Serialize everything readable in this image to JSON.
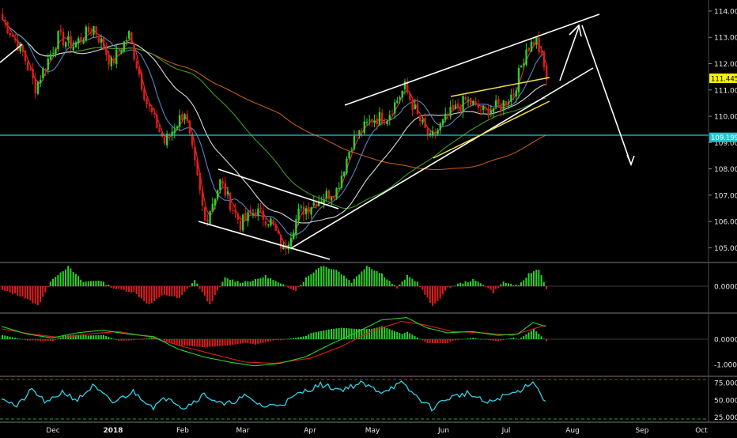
{
  "colors": {
    "background": "#000000",
    "up": "#2bd12b",
    "down": "#e01b1b",
    "axis_text": "#e6e6e6",
    "separator": "#7a7a7a",
    "trendline": "#ffffff",
    "yellow_line": "#f1e04a",
    "price_badge": "#f7f200",
    "level_line": "#23c7d3",
    "ma_orange": "#c05a1a",
    "ma_green": "#3f9a22",
    "ma_white": "#d8d8d8",
    "ma_blue": "#5b82c4",
    "ma_red": "#e43030",
    "oscillator": "#2fd3e6",
    "dashed_red": "#d42a2a",
    "dashed_green": "#1ea81e"
  },
  "chart_data": [
    {
      "type": "candlestick",
      "panel": "price",
      "ylim": [
        104.5,
        114.3
      ],
      "y_ticks": [
        "114.00",
        "113.00",
        "112.00",
        "111.00",
        "110.00",
        "109.00",
        "108.00",
        "107.00",
        "106.00",
        "105.00"
      ],
      "x_ticks": [
        "Dec",
        "2018",
        "Feb",
        "Mar",
        "Apr",
        "May",
        "Jun",
        "Jul",
        "Aug",
        "Sep",
        "Oct"
      ],
      "last_price_label": "111.445",
      "last_price": 111.445,
      "level_label": "109.199",
      "level": 109.199,
      "anchors": [
        {
          "i": 0,
          "v": 113.7
        },
        {
          "i": 8,
          "v": 112.4
        },
        {
          "i": 13,
          "v": 111.1
        },
        {
          "i": 22,
          "v": 113.0
        },
        {
          "i": 28,
          "v": 112.7
        },
        {
          "i": 36,
          "v": 113.4
        },
        {
          "i": 43,
          "v": 112.0
        },
        {
          "i": 50,
          "v": 113.1
        },
        {
          "i": 57,
          "v": 110.5
        },
        {
          "i": 64,
          "v": 109.0
        },
        {
          "i": 72,
          "v": 110.2
        },
        {
          "i": 80,
          "v": 106.0
        },
        {
          "i": 86,
          "v": 107.5
        },
        {
          "i": 94,
          "v": 105.9
        },
        {
          "i": 100,
          "v": 106.4
        },
        {
          "i": 106,
          "v": 106.0
        },
        {
          "i": 111,
          "v": 104.9
        },
        {
          "i": 117,
          "v": 106.3
        },
        {
          "i": 124,
          "v": 106.8
        },
        {
          "i": 132,
          "v": 107.2
        },
        {
          "i": 138,
          "v": 109.0
        },
        {
          "i": 146,
          "v": 109.9
        },
        {
          "i": 152,
          "v": 110.0
        },
        {
          "i": 159,
          "v": 111.1
        },
        {
          "i": 164,
          "v": 110.0
        },
        {
          "i": 169,
          "v": 109.1
        },
        {
          "i": 176,
          "v": 110.0
        },
        {
          "i": 183,
          "v": 110.6
        },
        {
          "i": 190,
          "v": 110.2
        },
        {
          "i": 197,
          "v": 110.4
        },
        {
          "i": 202,
          "v": 110.9
        },
        {
          "i": 207,
          "v": 112.6
        },
        {
          "i": 211,
          "v": 112.9
        },
        {
          "i": 215,
          "v": 111.45
        }
      ],
      "moving_averages": [
        {
          "color": "ma_orange",
          "period": 200
        },
        {
          "color": "ma_green",
          "period": 100
        },
        {
          "color": "ma_white",
          "period": 50
        },
        {
          "color": "ma_blue",
          "period": 20
        },
        {
          "color": "ma_red",
          "period": 8
        }
      ]
    },
    {
      "type": "bar",
      "panel": "histogram",
      "y_ticks": [
        "0.0000"
      ],
      "ylim": [
        -1.1,
        1.1
      ],
      "anchors": [
        {
          "i": 0,
          "v": -0.2
        },
        {
          "i": 8,
          "v": -0.5
        },
        {
          "i": 14,
          "v": -0.95
        },
        {
          "i": 20,
          "v": 0.4
        },
        {
          "i": 26,
          "v": 0.95
        },
        {
          "i": 32,
          "v": 0.2
        },
        {
          "i": 38,
          "v": 0.3
        },
        {
          "i": 44,
          "v": -0.1
        },
        {
          "i": 52,
          "v": -0.3
        },
        {
          "i": 58,
          "v": -0.9
        },
        {
          "i": 64,
          "v": -0.4
        },
        {
          "i": 70,
          "v": -0.6
        },
        {
          "i": 76,
          "v": 0.3
        },
        {
          "i": 82,
          "v": -0.9
        },
        {
          "i": 88,
          "v": 0.4
        },
        {
          "i": 94,
          "v": 0.2
        },
        {
          "i": 100,
          "v": 0.3
        },
        {
          "i": 104,
          "v": 0.5
        },
        {
          "i": 110,
          "v": 0.1
        },
        {
          "i": 116,
          "v": -0.2
        },
        {
          "i": 120,
          "v": 0.4
        },
        {
          "i": 126,
          "v": 1.0
        },
        {
          "i": 132,
          "v": 0.8
        },
        {
          "i": 138,
          "v": 0.2
        },
        {
          "i": 144,
          "v": 1.0
        },
        {
          "i": 150,
          "v": 0.6
        },
        {
          "i": 156,
          "v": -0.1
        },
        {
          "i": 160,
          "v": 0.5
        },
        {
          "i": 164,
          "v": 0.2
        },
        {
          "i": 170,
          "v": -1.0
        },
        {
          "i": 176,
          "v": -0.1
        },
        {
          "i": 180,
          "v": 0.1
        },
        {
          "i": 186,
          "v": 0.3
        },
        {
          "i": 190,
          "v": 0.1
        },
        {
          "i": 194,
          "v": -0.3
        },
        {
          "i": 198,
          "v": 0.2
        },
        {
          "i": 204,
          "v": 0.0
        },
        {
          "i": 208,
          "v": 0.6
        },
        {
          "i": 212,
          "v": 0.85
        },
        {
          "i": 215,
          "v": -0.1
        }
      ]
    },
    {
      "type": "line",
      "panel": "macd",
      "y_ticks": [
        "0.0000",
        "-1.0000"
      ],
      "ylim": [
        -1.4,
        0.9
      ],
      "macd_anchors": [
        {
          "i": 0,
          "v": 0.5
        },
        {
          "i": 10,
          "v": 0.2
        },
        {
          "i": 20,
          "v": 0.05
        },
        {
          "i": 30,
          "v": 0.25
        },
        {
          "i": 40,
          "v": 0.35
        },
        {
          "i": 50,
          "v": 0.2
        },
        {
          "i": 60,
          "v": 0.1
        },
        {
          "i": 70,
          "v": -0.4
        },
        {
          "i": 80,
          "v": -0.7
        },
        {
          "i": 90,
          "v": -0.9
        },
        {
          "i": 100,
          "v": -1.05
        },
        {
          "i": 110,
          "v": -0.95
        },
        {
          "i": 120,
          "v": -0.7
        },
        {
          "i": 130,
          "v": -0.2
        },
        {
          "i": 140,
          "v": 0.25
        },
        {
          "i": 150,
          "v": 0.75
        },
        {
          "i": 160,
          "v": 0.85
        },
        {
          "i": 168,
          "v": 0.45
        },
        {
          "i": 176,
          "v": 0.25
        },
        {
          "i": 186,
          "v": 0.3
        },
        {
          "i": 196,
          "v": 0.15
        },
        {
          "i": 204,
          "v": 0.2
        },
        {
          "i": 210,
          "v": 0.65
        },
        {
          "i": 215,
          "v": 0.5
        }
      ],
      "signal_anchors": [
        {
          "i": 0,
          "v": 0.4
        },
        {
          "i": 12,
          "v": 0.2
        },
        {
          "i": 24,
          "v": 0.05
        },
        {
          "i": 34,
          "v": 0.2
        },
        {
          "i": 46,
          "v": 0.3
        },
        {
          "i": 58,
          "v": 0.1
        },
        {
          "i": 72,
          "v": -0.3
        },
        {
          "i": 84,
          "v": -0.6
        },
        {
          "i": 96,
          "v": -0.9
        },
        {
          "i": 108,
          "v": -0.95
        },
        {
          "i": 122,
          "v": -0.75
        },
        {
          "i": 134,
          "v": -0.3
        },
        {
          "i": 146,
          "v": 0.3
        },
        {
          "i": 158,
          "v": 0.7
        },
        {
          "i": 168,
          "v": 0.55
        },
        {
          "i": 178,
          "v": 0.3
        },
        {
          "i": 190,
          "v": 0.25
        },
        {
          "i": 202,
          "v": 0.15
        },
        {
          "i": 210,
          "v": 0.4
        },
        {
          "i": 215,
          "v": 0.55
        }
      ]
    },
    {
      "type": "line",
      "panel": "oscillator",
      "y_ticks": [
        "75.0000",
        "50.0000",
        "25.0000"
      ],
      "ylim": [
        20,
        82
      ],
      "upper_band": 80,
      "lower_band": 20,
      "anchors": [
        {
          "i": 0,
          "v": 55
        },
        {
          "i": 6,
          "v": 40
        },
        {
          "i": 12,
          "v": 65
        },
        {
          "i": 18,
          "v": 45
        },
        {
          "i": 24,
          "v": 62
        },
        {
          "i": 30,
          "v": 50
        },
        {
          "i": 36,
          "v": 70
        },
        {
          "i": 44,
          "v": 46
        },
        {
          "i": 52,
          "v": 62
        },
        {
          "i": 60,
          "v": 40
        },
        {
          "i": 66,
          "v": 55
        },
        {
          "i": 72,
          "v": 38
        },
        {
          "i": 80,
          "v": 58
        },
        {
          "i": 88,
          "v": 42
        },
        {
          "i": 96,
          "v": 55
        },
        {
          "i": 104,
          "v": 40
        },
        {
          "i": 112,
          "v": 46
        },
        {
          "i": 118,
          "v": 60
        },
        {
          "i": 126,
          "v": 72
        },
        {
          "i": 134,
          "v": 65
        },
        {
          "i": 142,
          "v": 74
        },
        {
          "i": 150,
          "v": 62
        },
        {
          "i": 158,
          "v": 74
        },
        {
          "i": 164,
          "v": 55
        },
        {
          "i": 170,
          "v": 38
        },
        {
          "i": 176,
          "v": 52
        },
        {
          "i": 184,
          "v": 60
        },
        {
          "i": 192,
          "v": 45
        },
        {
          "i": 198,
          "v": 55
        },
        {
          "i": 204,
          "v": 62
        },
        {
          "i": 210,
          "v": 78
        },
        {
          "i": 214,
          "v": 52
        },
        {
          "i": 216,
          "v": 48
        }
      ]
    }
  ]
}
